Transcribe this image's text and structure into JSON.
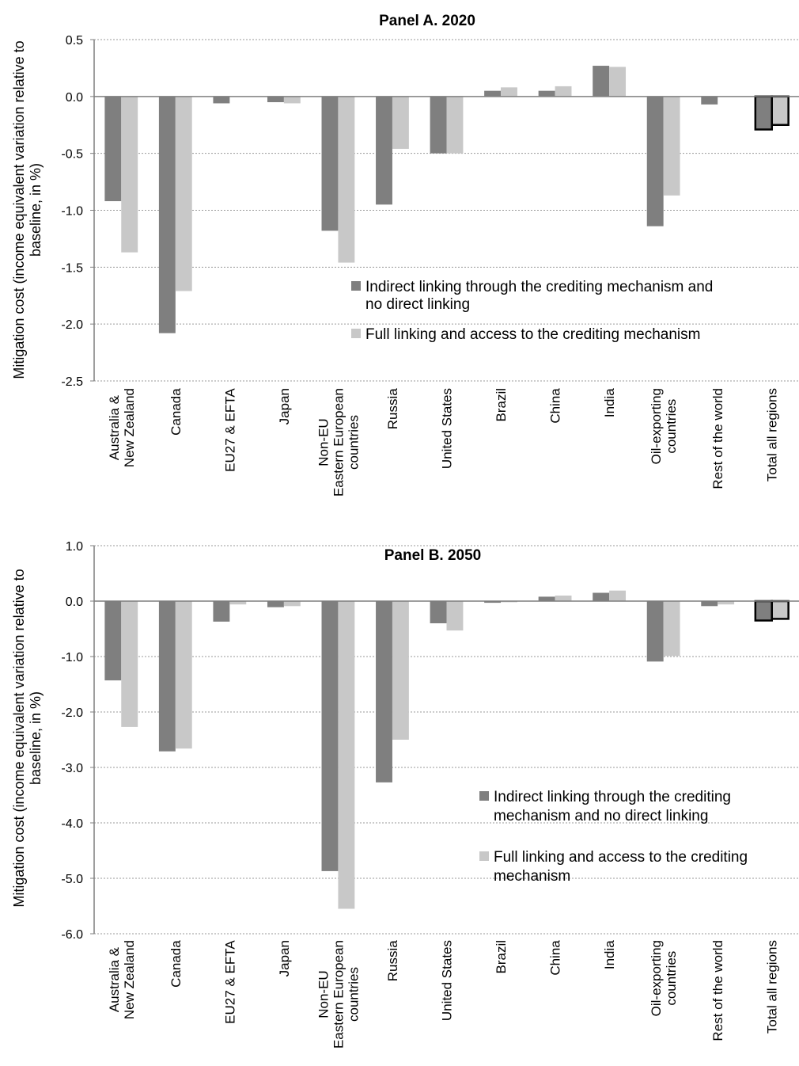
{
  "chart_data": [
    {
      "type": "bar",
      "title": "Panel A. 2020",
      "ylabel": "Mitigation cost (income equivalent variation  relative to baseline, in %)",
      "ylabel_lines": [
        "Mitigation cost (income equivalent variation  relative to",
        "baseline, in %)"
      ],
      "ylim": [
        -2.5,
        0.5
      ],
      "yticks": [
        0.5,
        0.0,
        -0.5,
        -1.0,
        -1.5,
        -2.0,
        -2.5
      ],
      "ytick_labels": [
        "0.5",
        "0.0",
        "-0.5",
        "-1.0",
        "-1.5",
        "-2.0",
        "-2.5"
      ],
      "grid": true,
      "legend_position": "lower-right",
      "categories": [
        "Australia & New Zealand",
        "Canada",
        "EU27 & EFTA",
        "Japan",
        "Non-EU Eastern European countries",
        "Russia",
        "United States",
        "Brazil",
        "China",
        "India",
        "Oil-exporting countries",
        "Rest of the world",
        "Total all regions"
      ],
      "category_label_lines": [
        [
          "Australia &",
          "New Zealand"
        ],
        [
          "Canada"
        ],
        [
          "EU27 & EFTA"
        ],
        [
          "Japan"
        ],
        [
          "Non-EU",
          "Eastern European",
          "countries"
        ],
        [
          "Russia"
        ],
        [
          "United States"
        ],
        [
          "Brazil"
        ],
        [
          "China"
        ],
        [
          "India"
        ],
        [
          "Oil-exporting",
          "countries"
        ],
        [
          "Rest of the world"
        ],
        [
          "Total all regions"
        ]
      ],
      "series": [
        {
          "name": "Indirect linking through the crediting mechanism and no direct linking",
          "legend_lines": [
            "Indirect linking through the crediting mechanism and",
            "no direct linking"
          ],
          "color": "#7f7f7f",
          "values": [
            -0.92,
            -2.08,
            -0.06,
            -0.05,
            -1.18,
            -0.95,
            -0.5,
            0.05,
            0.05,
            0.27,
            -1.14,
            -0.07,
            -0.29
          ]
        },
        {
          "name": "Full linking and access to the crediting mechanism",
          "legend_lines": [
            "Full linking and access to the crediting mechanism"
          ],
          "color": "#c8c8c8",
          "values": [
            -1.37,
            -1.71,
            0.0,
            -0.06,
            -1.46,
            -0.46,
            -0.5,
            0.08,
            0.09,
            0.26,
            -0.87,
            0.0,
            -0.25
          ]
        }
      ]
    },
    {
      "type": "bar",
      "title": "Panel B. 2050",
      "ylabel": "Mitigation cost (income equivalent variation relative to baseline, in  %)",
      "ylabel_lines": [
        "Mitigation cost (income equivalent variation relative to",
        "baseline, in  %)"
      ],
      "ylim": [
        -6.0,
        1.0
      ],
      "yticks": [
        1.0,
        0.0,
        -1.0,
        -2.0,
        -3.0,
        -4.0,
        -5.0,
        -6.0
      ],
      "ytick_labels": [
        "1.0",
        "0.0",
        "-1.0",
        "-2.0",
        "-3.0",
        "-4.0",
        "-5.0",
        "-6.0"
      ],
      "grid": true,
      "legend_position": "lower-right",
      "categories": [
        "Australia & New Zealand",
        "Canada",
        "EU27 & EFTA",
        "Japan",
        "Non-EU Eastern European countries",
        "Russia",
        "United States",
        "Brazil",
        "China",
        "India",
        "Oil-exporting countries",
        "Rest of the world",
        "Total all regions"
      ],
      "category_label_lines": [
        [
          "Australia &",
          "New Zealand"
        ],
        [
          "Canada"
        ],
        [
          "EU27 & EFTA"
        ],
        [
          "Japan"
        ],
        [
          "Non-EU",
          "Eastern European",
          "countries"
        ],
        [
          "Russia"
        ],
        [
          "United States"
        ],
        [
          "Brazil"
        ],
        [
          "China"
        ],
        [
          "India"
        ],
        [
          "Oil-exporting",
          "countries"
        ],
        [
          "Rest of the world"
        ],
        [
          "Total all regions"
        ]
      ],
      "series": [
        {
          "name": "Indirect linking through the crediting mechanism and no direct linking",
          "legend_lines": [
            "Indirect linking through the crediting",
            "mechanism and no direct linking"
          ],
          "color": "#7f7f7f",
          "values": [
            -1.43,
            -2.71,
            -0.37,
            -0.11,
            -4.87,
            -3.27,
            -0.4,
            -0.03,
            0.08,
            0.15,
            -1.09,
            -0.09,
            -0.35
          ]
        },
        {
          "name": "Full linking and access to the crediting mechanism",
          "legend_lines": [
            "Full linking and access to the crediting",
            "mechanism"
          ],
          "color": "#c8c8c8",
          "values": [
            -2.27,
            -2.66,
            -0.06,
            -0.09,
            -5.55,
            -2.5,
            -0.53,
            -0.02,
            0.1,
            0.19,
            -0.99,
            -0.06,
            -0.32
          ]
        }
      ]
    }
  ]
}
